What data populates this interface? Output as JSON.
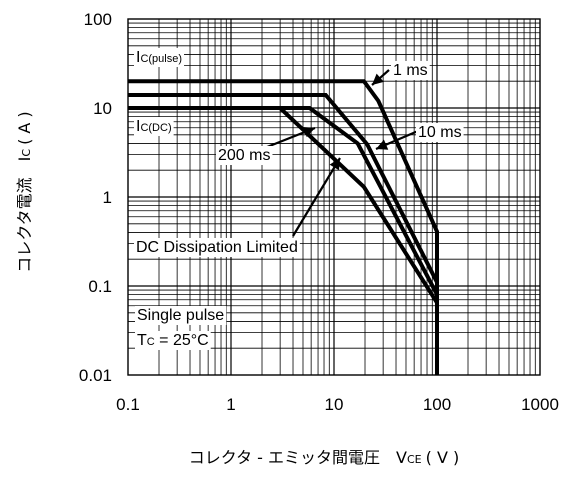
{
  "chart_data": {
    "type": "line",
    "xscale": "log",
    "yscale": "log",
    "xlim": [
      0.1,
      1000
    ],
    "ylim": [
      0.01,
      100
    ],
    "grid": true,
    "xticks": [
      "0.1",
      "1",
      "10",
      "100",
      "1000"
    ],
    "yticks": [
      "100",
      "10",
      "1",
      "0.1",
      "0.01"
    ],
    "xlabel": {
      "text": "コレクタ - エミッタ間電圧",
      "sym": "V",
      "sub": "CE",
      "unit": "( V )"
    },
    "ylabel": {
      "text": "コレクタ電流",
      "sym": "I",
      "sub": "C",
      "unit": "( A )"
    },
    "series": [
      {
        "label": "1 ms",
        "points": [
          [
            0.1,
            20
          ],
          [
            19.5,
            20
          ],
          [
            27,
            12
          ],
          [
            100,
            0.41
          ],
          [
            100,
            0.01
          ]
        ]
      },
      {
        "label": "10 ms",
        "points": [
          [
            0.1,
            14
          ],
          [
            8.3,
            14
          ],
          [
            21,
            3.9
          ],
          [
            100,
            0.11
          ]
        ]
      },
      {
        "label": "200 ms",
        "points": [
          [
            0.1,
            10
          ],
          [
            3.0,
            10
          ],
          [
            19.5,
            1.3
          ],
          [
            100,
            0.065
          ]
        ]
      },
      {
        "label": "DC Dissipation Limited",
        "points": [
          [
            0.1,
            10
          ],
          [
            5.8,
            10
          ],
          [
            17,
            4.0
          ],
          [
            100,
            0.08
          ]
        ]
      }
    ],
    "annotations": {
      "ic_pulse": {
        "sym": "I",
        "sub": "C(pulse)"
      },
      "ic_dc": {
        "sym": "I",
        "sub": "C(DC)"
      },
      "ms1": "1 ms",
      "ms10": "10 ms",
      "ms200": "200 ms",
      "dc_limited": "DC Dissipation Limited",
      "single_pulse": "Single pulse",
      "tc": {
        "sym": "T",
        "sub": "C",
        "rest": " = 25°C"
      }
    }
  }
}
